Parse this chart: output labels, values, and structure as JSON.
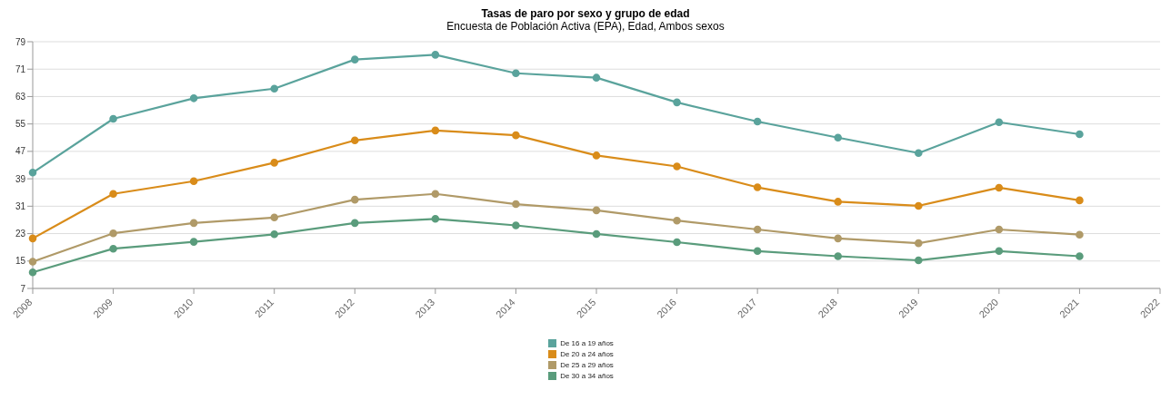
{
  "chart_data": {
    "type": "line",
    "title": "Tasas de paro por sexo y grupo de edad",
    "subtitle": "Encuesta de Población Activa (EPA), Edad, Ambos sexos",
    "categories": [
      "2008",
      "2009",
      "2010",
      "2011",
      "2012",
      "2013",
      "2014",
      "2015",
      "2016",
      "2017",
      "2018",
      "2019",
      "2020",
      "2021",
      "2022"
    ],
    "series": [
      {
        "name": "De 16 a 19 años",
        "color": "#5aa39c",
        "values": [
          40.8,
          56.5,
          62.5,
          65.3,
          73.8,
          75.2,
          69.8,
          68.5,
          61.3,
          55.7,
          51.0,
          46.5,
          55.5,
          52.0,
          null
        ]
      },
      {
        "name": "De 20 a 24 años",
        "color": "#d98c1a",
        "values": [
          21.6,
          34.6,
          38.3,
          43.7,
          50.2,
          53.1,
          51.7,
          45.8,
          42.6,
          36.5,
          32.3,
          31.1,
          36.4,
          32.7,
          null
        ]
      },
      {
        "name": "De 25 a 29 años",
        "color": "#b09a68",
        "values": [
          14.8,
          23.1,
          26.1,
          27.7,
          32.9,
          34.6,
          31.6,
          29.8,
          26.8,
          24.2,
          21.6,
          20.2,
          24.2,
          22.7,
          null
        ]
      },
      {
        "name": "De 30 a 34 años",
        "color": "#5a9c7c",
        "values": [
          11.7,
          18.6,
          20.6,
          22.8,
          26.1,
          27.3,
          25.4,
          22.9,
          20.5,
          17.9,
          16.4,
          15.2,
          17.9,
          16.4,
          null
        ]
      }
    ],
    "ylim": [
      7,
      79
    ],
    "yticks": [
      7,
      15,
      23,
      31,
      39,
      47,
      55,
      63,
      71,
      79
    ],
    "grid": "y",
    "legend": "bottom",
    "marker": "circle",
    "line_style": "solid"
  }
}
